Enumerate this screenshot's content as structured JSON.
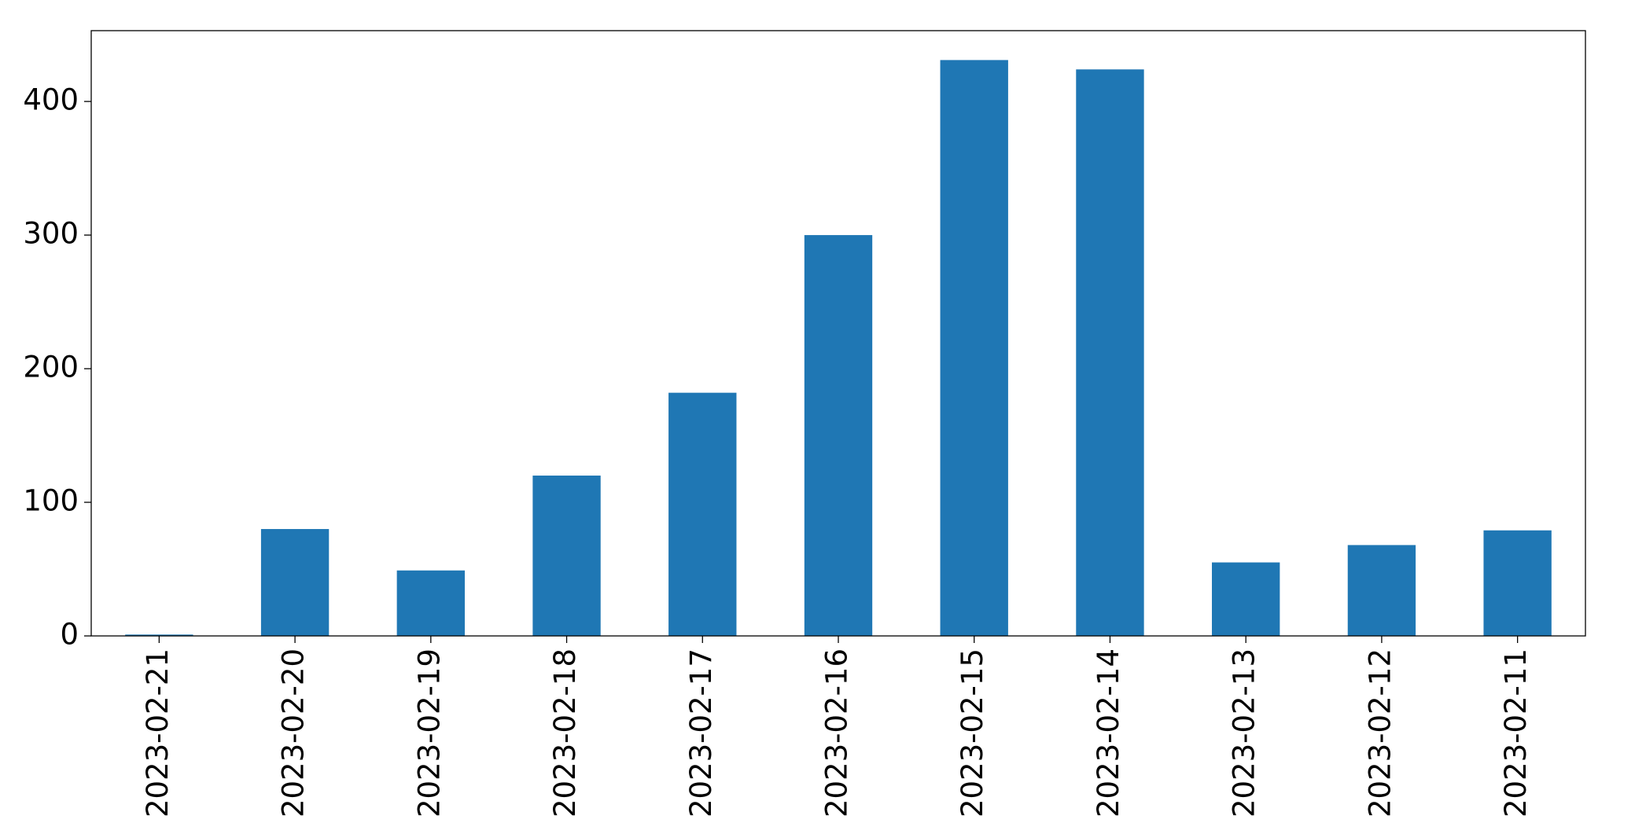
{
  "chart_data": {
    "type": "bar",
    "categories": [
      "2023-02-21",
      "2023-02-20",
      "2023-02-19",
      "2023-02-18",
      "2023-02-17",
      "2023-02-16",
      "2023-02-15",
      "2023-02-14",
      "2023-02-13",
      "2023-02-12",
      "2023-02-11"
    ],
    "values": [
      1,
      80,
      49,
      120,
      182,
      300,
      431,
      424,
      55,
      68,
      79
    ],
    "color": "#1f77b4",
    "ylim": [
      0,
      453
    ],
    "yticks": [
      0,
      100,
      200,
      300,
      400
    ],
    "grid": false
  }
}
